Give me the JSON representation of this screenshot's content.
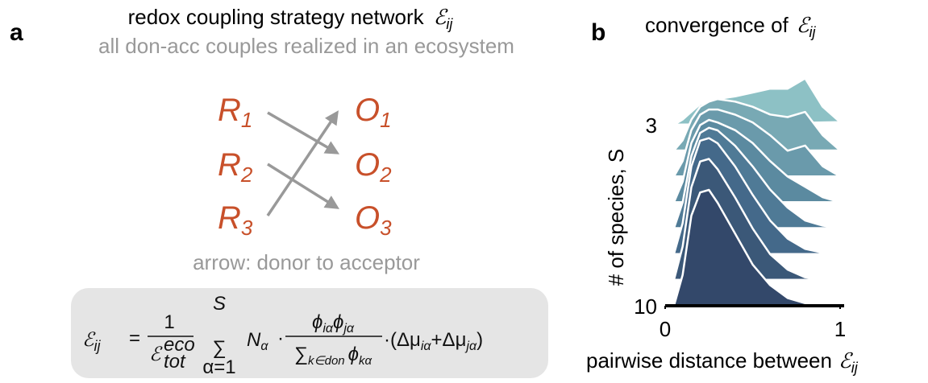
{
  "panel_a": {
    "label": "a",
    "title": "redox coupling strategy network",
    "title_symbol": "ℰ",
    "title_sub": "ij",
    "subtitle": "all don-acc couples realized in an ecosystem",
    "donors": [
      {
        "letter": "R",
        "sub": "1"
      },
      {
        "letter": "R",
        "sub": "2"
      },
      {
        "letter": "R",
        "sub": "3"
      }
    ],
    "acceptors": [
      {
        "letter": "O",
        "sub": "1"
      },
      {
        "letter": "O",
        "sub": "2"
      },
      {
        "letter": "O",
        "sub": "3"
      }
    ],
    "caption": "arrow: donor to acceptor",
    "formula": {
      "lhs": "ℰ",
      "lhs_sub": "ij",
      "eq": "=",
      "one": "1",
      "den": "ℰ",
      "den_sub": "tot",
      "den_sup": "eco",
      "sum": "∑",
      "sum_top": "S",
      "sum_bottom": "α=1",
      "n": "N",
      "n_sub": "α",
      "dot": "·",
      "num_phi1": "ϕ",
      "num_sub1": "iα",
      "num_phi2": "ϕ",
      "num_sub2": "jα",
      "den_sum": "∑",
      "den_sum_sub": "k∈don",
      "den_phi": "ϕ",
      "den_phi_sub": "kα",
      "tail1": "·(Δμ",
      "tail_sub1": "iα",
      "tail2": "+Δμ",
      "tail_sub2": "jα",
      "tail3": ")"
    }
  },
  "panel_b": {
    "label": "b"
  },
  "chart_data": {
    "type": "ridgeline",
    "title": "convergence of",
    "title_symbol": "ℰ",
    "title_sub": "ij",
    "xlabel": "pairwise distance between",
    "xlabel_symbol": "ℰ",
    "xlabel_sub": "ij",
    "ylabel": "# of species, S",
    "x": [
      0.05,
      0.1,
      0.15,
      0.2,
      0.25,
      0.3,
      0.4,
      0.5,
      0.6,
      0.7,
      0.8,
      0.9,
      1.0
    ],
    "categories": [
      3,
      null,
      null,
      null,
      null,
      null,
      null,
      10
    ],
    "series": [
      {
        "color": "#8dc1c5",
        "values": [
          0,
          0.2,
          0.5,
          0.8,
          0.9,
          1.0,
          1.1,
          1.25,
          1.4,
          1.4,
          1.8,
          0.7,
          0.1
        ]
      },
      {
        "color": "#78a9b4",
        "values": [
          0,
          0.4,
          1.2,
          1.7,
          1.9,
          2.0,
          1.9,
          1.7,
          1.4,
          1.3,
          1.5,
          0.6,
          0
        ]
      },
      {
        "color": "#6a9aab",
        "values": [
          0,
          0.6,
          1.8,
          2.4,
          2.6,
          2.6,
          2.4,
          2.1,
          1.6,
          1.0,
          1.2,
          0.4,
          0
        ]
      },
      {
        "color": "#5b8aa0",
        "values": [
          0,
          0.8,
          2.3,
          3.0,
          3.2,
          3.1,
          2.8,
          2.3,
          1.6,
          1.0,
          0.6,
          0.2,
          0
        ]
      },
      {
        "color": "#4f7a96",
        "values": [
          0,
          1.0,
          2.8,
          3.7,
          3.9,
          3.8,
          3.2,
          2.4,
          1.5,
          0.8,
          0.3,
          0.1,
          0
        ]
      },
      {
        "color": "#44698a",
        "values": [
          0,
          1.2,
          3.4,
          4.4,
          4.5,
          4.3,
          3.4,
          2.3,
          1.3,
          0.6,
          0.2,
          0.05,
          0
        ]
      },
      {
        "color": "#3b5878",
        "values": [
          0,
          1.3,
          3.6,
          4.6,
          4.7,
          4.3,
          3.2,
          2.0,
          1.0,
          0.4,
          0.1,
          0,
          0
        ]
      },
      {
        "color": "#33486a",
        "values": [
          0,
          1.2,
          3.5,
          4.4,
          4.5,
          4.0,
          2.8,
          1.6,
          0.8,
          0.3,
          0.1,
          0,
          0
        ]
      }
    ],
    "xlim": [
      0,
      1
    ],
    "xticks": [
      0,
      1
    ]
  }
}
